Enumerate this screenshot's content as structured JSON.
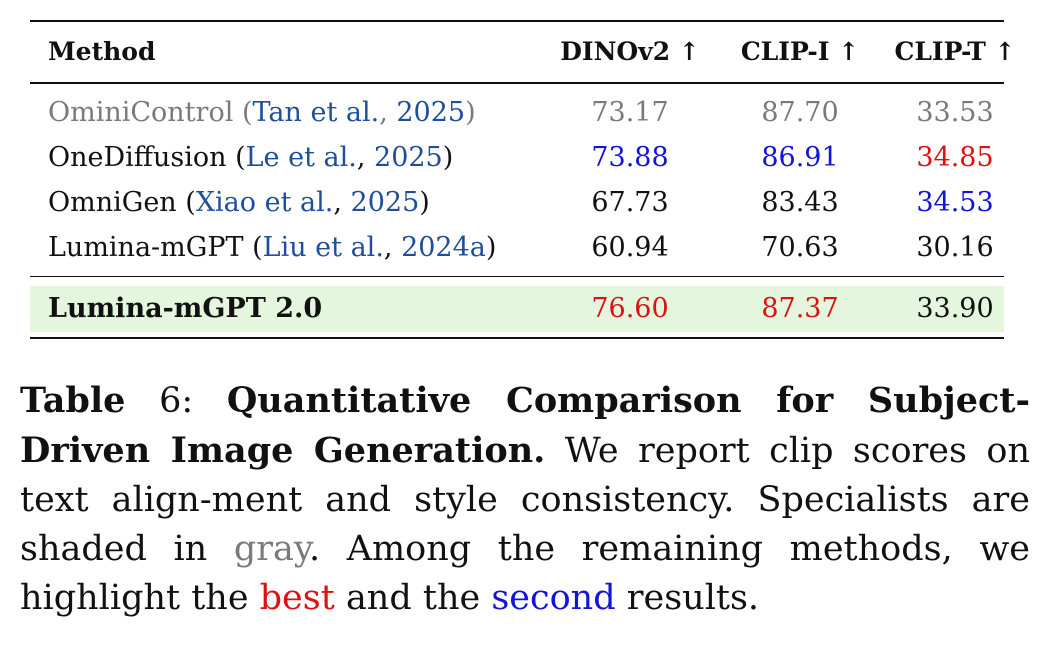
{
  "table": {
    "headers": {
      "method": "Method",
      "dino": "DINOv2 ↑",
      "clipi": "CLIP-I ↑",
      "clipt": "CLIP-T ↑"
    },
    "rows": [
      {
        "name": "OminiControl",
        "open": " (",
        "cite_author": "Tan et al.",
        "sep": ", ",
        "cite_year": "2025",
        "close": ")",
        "dino": "73.17",
        "clipi": "87.70",
        "clipt": "33.53"
      },
      {
        "name": "OneDiffusion",
        "open": " (",
        "cite_author": "Le et al.",
        "sep": ", ",
        "cite_year": "2025",
        "close": ")",
        "dino": "73.88",
        "clipi": "86.91",
        "clipt": "34.85"
      },
      {
        "name": "OmniGen",
        "open": " (",
        "cite_author": "Xiao et al.",
        "sep": ", ",
        "cite_year": "2025",
        "close": ")",
        "dino": "67.73",
        "clipi": "83.43",
        "clipt": "34.53"
      },
      {
        "name": "Lumina-mGPT",
        "open": " (",
        "cite_author": "Liu et al.",
        "sep": ", ",
        "cite_year": "2024a",
        "close": ")",
        "dino": "60.94",
        "clipi": "70.63",
        "clipt": "30.16"
      }
    ],
    "ours": {
      "name": "Lumina-mGPT 2.0",
      "dino": "76.60",
      "clipi": "87.37",
      "clipt": "33.90"
    }
  },
  "caption": {
    "label": "Table",
    "number": " 6: ",
    "title": "Quantitative Comparison for Subject-Driven Image Generation.",
    "text1": " We report clip scores on text align-ment and style consistency. Specialists are shaded in ",
    "gray_word": "gray",
    "text2": ". Among the remaining methods, we highlight the ",
    "best_word": "best",
    "text3": " and the ",
    "second_word": "second",
    "text4": " results."
  },
  "colors": {
    "best": "#dd1111",
    "second": "#1414d8",
    "specialist": "#7a7a7a",
    "citation": "#1f4e9c",
    "ours_bg": "#e4f7de"
  }
}
